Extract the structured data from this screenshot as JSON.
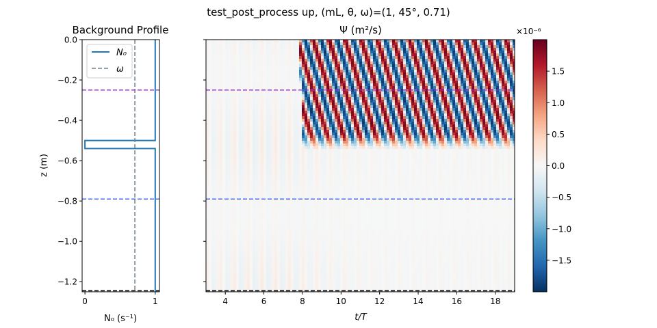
{
  "suptitle": "test_post_process up, (mL, θ, ω)=(1, 45°, 0.71)",
  "chart_data": [
    {
      "type": "line",
      "title": "Background Profile",
      "xlabel": "N₀ (s⁻¹)",
      "ylabel": "z (m)",
      "xlim": [
        -0.04,
        1.06
      ],
      "ylim": [
        -1.25,
        0.0
      ],
      "xticks": [
        0,
        1
      ],
      "yticks": [
        0.0,
        -0.2,
        -0.4,
        -0.6,
        -0.8,
        -1.0,
        -1.2
      ],
      "ytick_labels": [
        "0.0",
        "−0.2",
        "−0.4",
        "−0.6",
        "−0.8",
        "−1.0",
        "−1.2"
      ],
      "legend": {
        "placement": "upper-left",
        "entries": [
          {
            "label": "N₀",
            "style": "solid",
            "color": "#1f77b4"
          },
          {
            "label": "ω",
            "style": "dashed",
            "color": "#708090"
          }
        ]
      },
      "series": [
        {
          "name": "N₀",
          "color": "#1f77b4",
          "z": [
            0.0,
            -0.5,
            -0.5,
            -0.54,
            -0.54,
            -1.25
          ],
          "x": [
            1.0,
            1.0,
            0.0,
            0.0,
            1.0,
            1.0
          ]
        },
        {
          "name": "ω",
          "color": "#708090",
          "x_const": 0.71
        }
      ],
      "hlines": [
        {
          "z": -0.25,
          "color": "#9932cc"
        },
        {
          "z": -0.79,
          "color": "#4169e1"
        },
        {
          "z": -1.245,
          "color": "#000000"
        }
      ]
    },
    {
      "type": "heatmap",
      "title": "Ψ (m²/s)",
      "xlabel": "t/T",
      "xlim": [
        3,
        19
      ],
      "ylim": [
        -1.25,
        0.0
      ],
      "xticks": [
        4,
        6,
        8,
        10,
        12,
        14,
        16,
        18
      ],
      "colormap": "RdBu_r",
      "hlines": [
        {
          "z": -0.25,
          "color": "#9932cc"
        },
        {
          "z": -0.79,
          "color": "#4169e1"
        },
        {
          "z": -1.245,
          "color": "#000000"
        }
      ],
      "colorbar": {
        "range": [
          -2e-06,
          2e-06
        ],
        "ticks": [
          -1.5,
          -1.0,
          -0.5,
          0.0,
          0.5,
          1.0,
          1.5
        ],
        "tick_labels": [
          "−1.5",
          "−1.0",
          "−0.5",
          "0.0",
          "0.5",
          "1.0",
          "1.5"
        ],
        "exponent_label": "×10⁻⁶"
      }
    }
  ]
}
